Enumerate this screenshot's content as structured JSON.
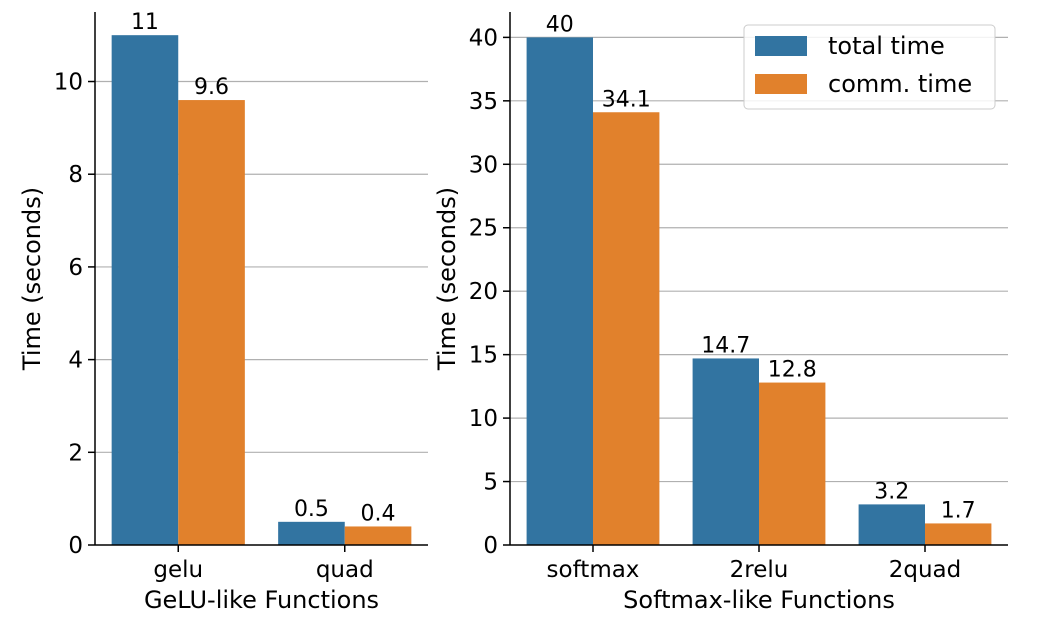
{
  "colors": {
    "total": "#3274a1",
    "comm": "#e1812c"
  },
  "legend": {
    "position": "top-right",
    "entries": [
      "total time",
      "comm. time"
    ]
  },
  "chart_data": [
    {
      "type": "bar",
      "xlabel": "GeLU-like Functions",
      "ylabel": "Time (seconds)",
      "categories": [
        "gelu",
        "quad"
      ],
      "series": [
        {
          "name": "total time",
          "values": [
            11,
            0.5
          ],
          "labels": [
            "11",
            "0.5"
          ]
        },
        {
          "name": "comm. time",
          "values": [
            9.6,
            0.4
          ],
          "labels": [
            "9.6",
            "0.4"
          ]
        }
      ],
      "ylim": [
        0,
        11.5
      ],
      "yticks": [
        0,
        2,
        4,
        6,
        8,
        10
      ],
      "grid": "horizontal"
    },
    {
      "type": "bar",
      "xlabel": "Softmax-like Functions",
      "ylabel": "Time (seconds)",
      "categories": [
        "softmax",
        "2relu",
        "2quad"
      ],
      "series": [
        {
          "name": "total time",
          "values": [
            40,
            14.7,
            3.2
          ],
          "labels": [
            "40",
            "14.7",
            "3.2"
          ]
        },
        {
          "name": "comm. time",
          "values": [
            34.1,
            12.8,
            1.7
          ],
          "labels": [
            "34.1",
            "12.8",
            "1.7"
          ]
        }
      ],
      "ylim": [
        0,
        42
      ],
      "yticks": [
        0,
        5,
        10,
        15,
        20,
        25,
        30,
        35,
        40
      ],
      "grid": "horizontal"
    }
  ]
}
